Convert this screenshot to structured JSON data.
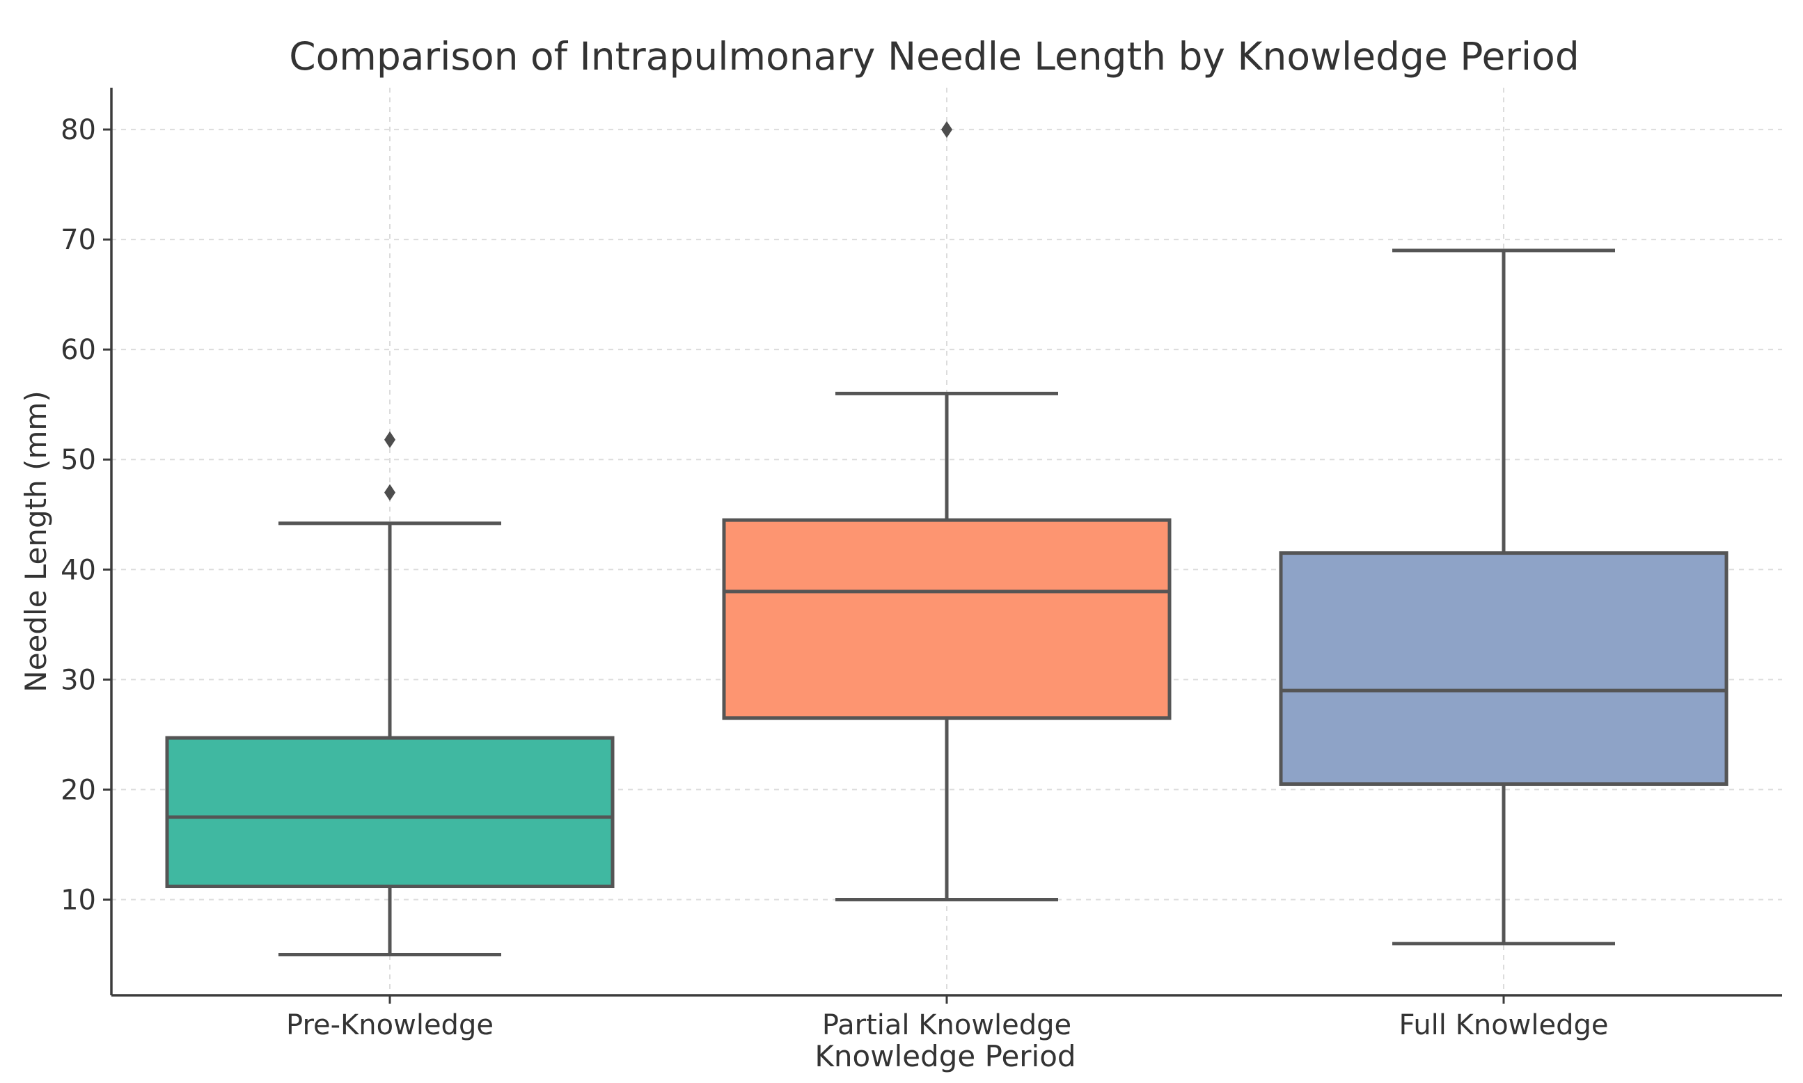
{
  "chart_data": {
    "type": "box",
    "title": "Comparison of Intrapulmonary Needle Length by Knowledge Period",
    "xlabel": "Knowledge Period",
    "ylabel": "Needle Length (mm)",
    "ylim": [
      1.3,
      83.8
    ],
    "yticks": [
      10,
      20,
      30,
      40,
      50,
      60,
      70,
      80
    ],
    "grid": true,
    "categories": [
      "Pre-Knowledge",
      "Partial Knowledge",
      "Full Knowledge"
    ],
    "boxes": [
      {
        "category": "Pre-Knowledge",
        "whisker_low": 5,
        "q1": 11.2,
        "median": 17.5,
        "q3": 24.7,
        "whisker_high": 44.2,
        "outliers": [
          47,
          51.8
        ],
        "color": "#40b8a1"
      },
      {
        "category": "Partial Knowledge",
        "whisker_low": 10,
        "q1": 26.5,
        "median": 38,
        "q3": 44.5,
        "whisker_high": 56,
        "outliers": [
          80
        ],
        "color": "#fd9571"
      },
      {
        "category": "Full Knowledge",
        "whisker_low": 6,
        "q1": 20.5,
        "median": 29,
        "q3": 41.5,
        "whisker_high": 69,
        "outliers": [],
        "color": "#8ea3c7"
      }
    ]
  }
}
